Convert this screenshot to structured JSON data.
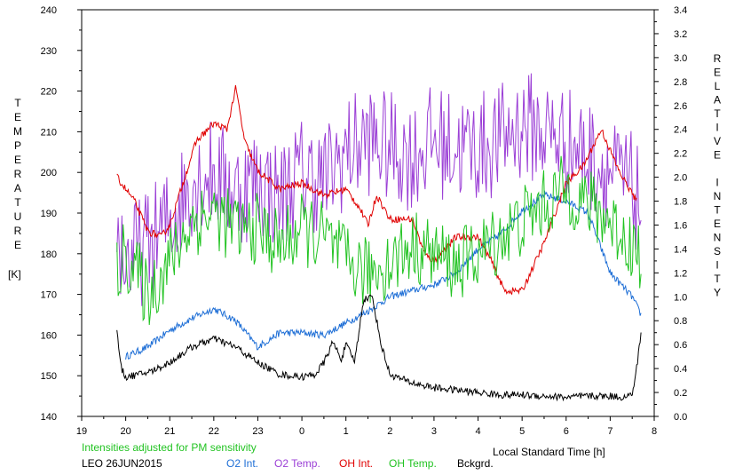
{
  "chart_data": {
    "type": "line",
    "x_axis": {
      "min": 19,
      "max": 32,
      "tick_values": [
        19,
        20,
        21,
        22,
        23,
        24,
        25,
        26,
        27,
        28,
        29,
        30,
        31,
        32
      ],
      "tick_labels": [
        "19",
        "20",
        "21",
        "22",
        "23",
        "0",
        "1",
        "2",
        "3",
        "4",
        "5",
        "6",
        "7",
        "8"
      ],
      "label": "Local Standard Time [h]"
    },
    "left_axis": {
      "min": 140,
      "max": 240,
      "ticks": [
        "140",
        "150",
        "160",
        "170",
        "180",
        "190",
        "200",
        "210",
        "220",
        "230",
        "240"
      ],
      "label_letters": [
        "T",
        "E",
        "M",
        "P",
        "E",
        "R",
        "A",
        "T",
        "U",
        "R",
        "E"
      ],
      "unit": "[K]"
    },
    "right_axis": {
      "min": 0.0,
      "max": 3.4,
      "ticks": [
        "0.0",
        "0.2",
        "0.4",
        "0.6",
        "0.8",
        "1.0",
        "1.2",
        "1.4",
        "1.6",
        "1.8",
        "2.0",
        "2.2",
        "2.4",
        "2.6",
        "2.8",
        "3.0",
        "3.2",
        "3.4"
      ],
      "label_letters": [
        "R",
        "E",
        "L",
        "A",
        "T",
        "I",
        "V",
        "E",
        "",
        "I",
        "N",
        "T",
        "E",
        "N",
        "S",
        "I",
        "T",
        "Y"
      ]
    },
    "note": "Intensities adjusted for PM sensitivity",
    "site_date": "LEO 26JUN2015",
    "series": [
      {
        "name": "O2 Int.",
        "color": "#1f6fd6",
        "axis": "right",
        "style": "smooth",
        "x": [
          20.0,
          20.5,
          21.0,
          21.5,
          22.0,
          22.5,
          23.0,
          23.5,
          24.0,
          24.5,
          25.0,
          25.5,
          26.0,
          26.5,
          27.0,
          27.5,
          28.0,
          28.5,
          29.0,
          29.5,
          30.0,
          30.5,
          31.0,
          31.5,
          31.7
        ],
        "y": [
          0.5,
          0.58,
          0.72,
          0.82,
          0.9,
          0.8,
          0.58,
          0.7,
          0.7,
          0.68,
          0.78,
          0.88,
          1.0,
          1.05,
          1.1,
          1.2,
          1.4,
          1.52,
          1.72,
          1.85,
          1.8,
          1.7,
          1.2,
          1.0,
          0.85
        ]
      },
      {
        "name": "O2 Temp.",
        "color": "#9b3fd6",
        "axis": "left",
        "style": "noisy",
        "x": [
          19.8,
          20.0,
          20.5,
          21.0,
          21.5,
          22.0,
          22.5,
          23.0,
          23.5,
          24.0,
          24.5,
          25.0,
          25.5,
          26.0,
          26.5,
          27.0,
          27.5,
          28.0,
          28.5,
          29.0,
          29.5,
          30.0,
          30.5,
          31.0,
          31.5,
          31.7
        ],
        "y": [
          185,
          178,
          182,
          188,
          198,
          200,
          195,
          198,
          194,
          200,
          198,
          205,
          208,
          206,
          204,
          208,
          206,
          206,
          208,
          212,
          210,
          208,
          204,
          200,
          196,
          192
        ]
      },
      {
        "name": "OH Int.",
        "color": "#e00000",
        "axis": "right",
        "style": "smooth",
        "x": [
          19.8,
          20.2,
          20.5,
          20.8,
          21.0,
          21.3,
          21.6,
          22.0,
          22.3,
          22.5,
          22.7,
          23.0,
          23.5,
          24.0,
          24.5,
          25.0,
          25.3,
          25.5,
          25.7,
          26.0,
          26.5,
          26.8,
          27.0,
          27.5,
          28.0,
          28.3,
          28.6,
          29.0,
          29.5,
          30.0,
          30.4,
          30.8,
          31.2,
          31.6
        ],
        "y": [
          2.0,
          1.8,
          1.55,
          1.5,
          1.6,
          1.95,
          2.3,
          2.45,
          2.4,
          2.75,
          2.3,
          2.05,
          1.9,
          1.95,
          1.85,
          1.9,
          1.75,
          1.6,
          1.85,
          1.65,
          1.65,
          1.35,
          1.3,
          1.5,
          1.5,
          1.3,
          1.05,
          1.05,
          1.45,
          1.95,
          2.1,
          2.4,
          2.05,
          1.8
        ]
      },
      {
        "name": "OH Temp.",
        "color": "#22c322",
        "axis": "left",
        "style": "noisy",
        "x": [
          19.8,
          20.0,
          20.5,
          21.0,
          21.5,
          22.0,
          22.5,
          23.0,
          23.5,
          24.0,
          24.5,
          25.0,
          25.5,
          26.0,
          26.5,
          27.0,
          27.5,
          28.0,
          28.5,
          29.0,
          29.5,
          30.0,
          30.5,
          31.0,
          31.5,
          31.7
        ],
        "y": [
          176,
          180,
          170,
          178,
          188,
          190,
          186,
          186,
          182,
          186,
          184,
          178,
          175,
          178,
          182,
          180,
          177,
          180,
          184,
          188,
          192,
          196,
          192,
          188,
          182,
          180
        ]
      },
      {
        "name": "Bckgrd.",
        "color": "#000000",
        "axis": "right",
        "style": "smooth",
        "x": [
          19.8,
          19.9,
          20.0,
          20.3,
          20.6,
          21.0,
          21.5,
          22.0,
          22.5,
          23.0,
          23.5,
          24.0,
          24.3,
          24.5,
          24.7,
          24.9,
          25.0,
          25.2,
          25.4,
          25.6,
          25.8,
          26.0,
          26.5,
          27.0,
          27.5,
          28.0,
          28.5,
          29.0,
          29.5,
          30.0,
          30.5,
          31.0,
          31.3,
          31.5,
          31.6,
          31.7
        ],
        "y": [
          0.7,
          0.4,
          0.33,
          0.35,
          0.38,
          0.45,
          0.58,
          0.65,
          0.58,
          0.45,
          0.35,
          0.33,
          0.35,
          0.45,
          0.62,
          0.48,
          0.6,
          0.46,
          0.98,
          1.0,
          0.6,
          0.35,
          0.28,
          0.24,
          0.22,
          0.2,
          0.18,
          0.18,
          0.17,
          0.16,
          0.17,
          0.17,
          0.16,
          0.18,
          0.4,
          0.7
        ]
      }
    ]
  }
}
